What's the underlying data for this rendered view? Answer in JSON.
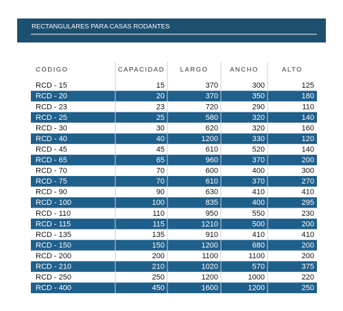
{
  "header": {
    "title": "RECTANGULARES PARA CASAS RODANTES"
  },
  "table": {
    "columns": [
      "CÓDIGO",
      "CAPACIDAD",
      "LARGO",
      "ANCHO",
      "ALTO"
    ],
    "rows": [
      [
        "RCD - 15",
        15,
        370,
        300,
        125
      ],
      [
        "RCD - 20",
        20,
        370,
        350,
        180
      ],
      [
        "RCD - 23",
        23,
        720,
        290,
        110
      ],
      [
        "RCD - 25",
        25,
        580,
        320,
        140
      ],
      [
        "RCD - 30",
        30,
        620,
        320,
        160
      ],
      [
        "RCD - 40",
        40,
        1200,
        330,
        120
      ],
      [
        "RCD - 45",
        45,
        610,
        520,
        140
      ],
      [
        "RCD - 65",
        65,
        960,
        370,
        200
      ],
      [
        "RCD - 70",
        70,
        600,
        400,
        300
      ],
      [
        "RCD - 75",
        70,
        610,
        370,
        270
      ],
      [
        "RCD - 90",
        90,
        630,
        410,
        410
      ],
      [
        "RCD - 100",
        100,
        835,
        400,
        295
      ],
      [
        "RCD - 110",
        110,
        950,
        550,
        230
      ],
      [
        "RCD - 115",
        115,
        1210,
        500,
        200
      ],
      [
        "RCD - 135",
        135,
        910,
        410,
        410
      ],
      [
        "RCD - 150",
        150,
        1200,
        680,
        200
      ],
      [
        "RCD - 200",
        200,
        1100,
        1100,
        200
      ],
      [
        "RCD - 210",
        210,
        1020,
        570,
        375
      ],
      [
        "RCD - 250",
        250,
        1200,
        1000,
        220
      ],
      [
        "RCD - 400",
        450,
        1600,
        1200,
        250
      ]
    ]
  }
}
